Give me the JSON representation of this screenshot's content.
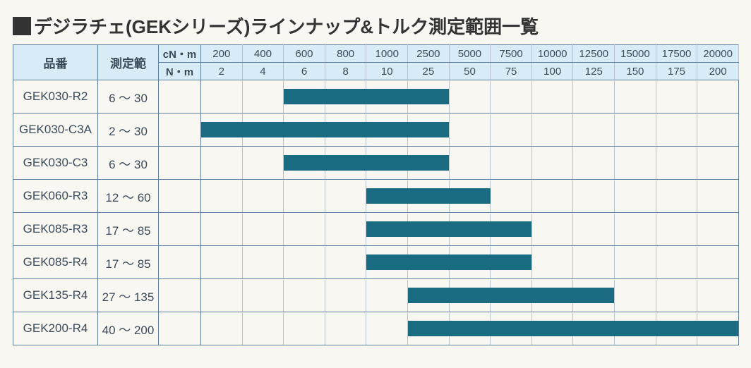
{
  "title_text": "デジラチェ(GEKシリーズ)ラインナップ&トルク測定範囲一覧",
  "columns": {
    "product_header": "品番",
    "range_header": "測定範",
    "unit_top": "cN・m",
    "unit_bottom": "N・m",
    "scale_top": [
      "200",
      "400",
      "600",
      "800",
      "1000",
      "2500",
      "5000",
      "7500",
      "10000",
      "12500",
      "15000",
      "17500",
      "20000"
    ],
    "scale_bottom": [
      "2",
      "4",
      "6",
      "8",
      "10",
      "25",
      "50",
      "75",
      "100",
      "125",
      "150",
      "175",
      "200"
    ]
  },
  "seg_widths_pct": [
    7.6923,
    7.6923,
    7.6923,
    7.6923,
    7.6923,
    7.6923,
    7.6923,
    7.6923,
    7.6923,
    7.6923,
    7.6923,
    7.6923,
    7.6923
  ],
  "bar_color": "#1a6a82",
  "header_bg": "#d7ecf7",
  "border_color": "#5c7fa0",
  "grid_color": "#b9c3cc",
  "page_bg": "#f8f7f2",
  "text_color": "#3a4a5a",
  "rows": [
    {
      "product": "GEK030-R2",
      "range": "6 ～ 30",
      "bar_from": 3,
      "bar_to": 6
    },
    {
      "product": "GEK030-C3A",
      "range": "2 ～ 30",
      "bar_from": 1,
      "bar_to": 6
    },
    {
      "product": "GEK030-C3",
      "range": "6 ～ 30",
      "bar_from": 3,
      "bar_to": 6
    },
    {
      "product": "GEK060-R3",
      "range": "12 ～ 60",
      "bar_from": 5,
      "bar_to": 7
    },
    {
      "product": "GEK085-R3",
      "range": "17 ～ 85",
      "bar_from": 5,
      "bar_to": 8
    },
    {
      "product": "GEK085-R4",
      "range": "17 ～ 85",
      "bar_from": 5,
      "bar_to": 8
    },
    {
      "product": "GEK135-R4",
      "range": "27 ～ 135",
      "bar_from": 6,
      "bar_to": 10
    },
    {
      "product": "GEK200-R4",
      "range": "40 ～ 200",
      "bar_from": 6,
      "bar_to": 13
    }
  ]
}
